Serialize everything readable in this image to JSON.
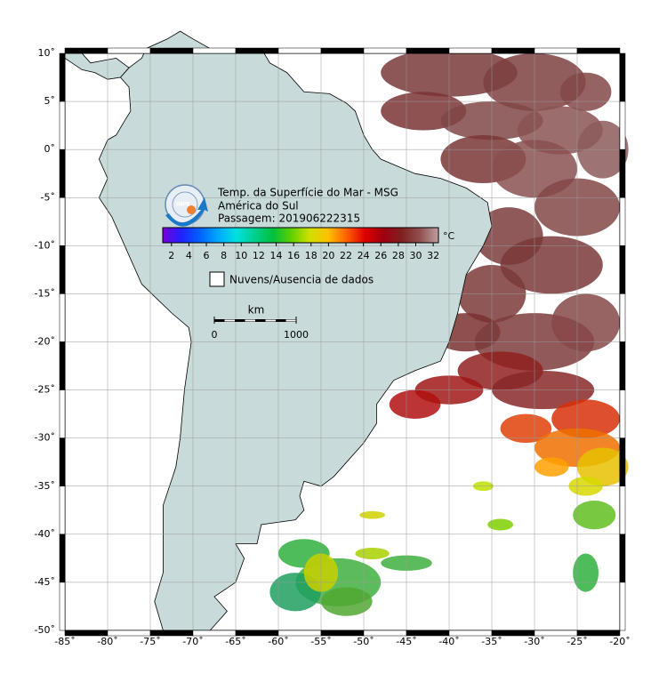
{
  "map": {
    "title": "Temp. da Superfície do Mar - MSG",
    "subtitle": "América do Sul",
    "pass": "Passagem: 201906222315",
    "xlim": [
      -85,
      -20
    ],
    "ylim": [
      -50,
      10
    ],
    "xticks": [
      {
        "value": -85,
        "label": "-85˚"
      },
      {
        "value": -80,
        "label": "-80˚"
      },
      {
        "value": -75,
        "label": "-75˚"
      },
      {
        "value": -70,
        "label": "-70˚"
      },
      {
        "value": -65,
        "label": "-65˚"
      },
      {
        "value": -60,
        "label": "-60˚"
      },
      {
        "value": -55,
        "label": "-55˚"
      },
      {
        "value": -50,
        "label": "-50˚"
      },
      {
        "value": -45,
        "label": "-45˚"
      },
      {
        "value": -40,
        "label": "-40˚"
      },
      {
        "value": -35,
        "label": "-35˚"
      },
      {
        "value": -30,
        "label": "-30˚"
      },
      {
        "value": -25,
        "label": "-25˚"
      },
      {
        "value": -20,
        "label": "-20˚"
      }
    ],
    "yticks": [
      {
        "value": 10,
        "label": "10˚"
      },
      {
        "value": 5,
        "label": "5˚"
      },
      {
        "value": 0,
        "label": "0˚"
      },
      {
        "value": -5,
        "label": "-5˚"
      },
      {
        "value": -10,
        "label": "-10˚"
      },
      {
        "value": -15,
        "label": "-15˚"
      },
      {
        "value": -20,
        "label": "-20˚"
      },
      {
        "value": -25,
        "label": "-25˚"
      },
      {
        "value": -30,
        "label": "-30˚"
      },
      {
        "value": -35,
        "label": "-35˚"
      },
      {
        "value": -40,
        "label": "-40˚"
      },
      {
        "value": -45,
        "label": "-45˚"
      },
      {
        "value": -50,
        "label": "-50˚"
      }
    ],
    "grid": true,
    "colorbar": {
      "unit": "°C",
      "range": [
        1,
        32.6
      ],
      "ticks": [
        2,
        4,
        6,
        8,
        10,
        12,
        14,
        16,
        18,
        20,
        22,
        24,
        26,
        28,
        30,
        32
      ],
      "colors": [
        "#7a00d8",
        "#2020ff",
        "#0060ff",
        "#00a8ff",
        "#00e0e0",
        "#00d090",
        "#00c040",
        "#60d000",
        "#d0e000",
        "#ffc000",
        "#ff6000",
        "#e00000",
        "#a00010",
        "#802020",
        "#905050",
        "#c0a0a0"
      ]
    },
    "legend": "Nuvens/Ausencia de dados",
    "scale": {
      "unit": "km",
      "ticks": [
        0,
        1000
      ]
    }
  }
}
